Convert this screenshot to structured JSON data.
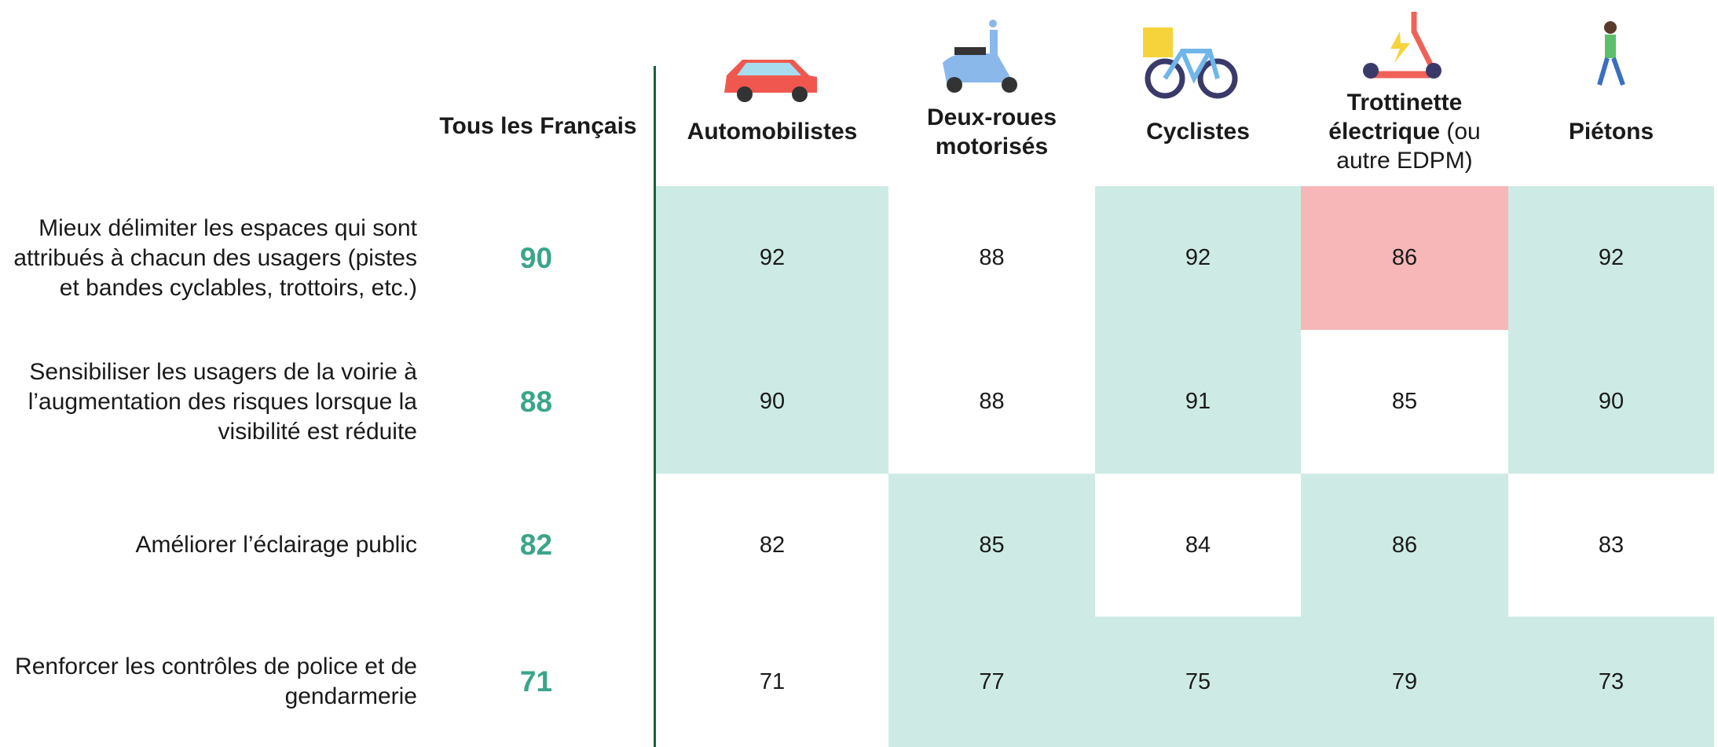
{
  "header": {
    "overall": "Tous les Français",
    "columns": [
      {
        "name": "Automobilistes"
      },
      {
        "name": "Deux-roues motorisés"
      },
      {
        "name": "Cyclistes"
      },
      {
        "name": "Trottinette électrique",
        "note": "(ou autre EDPM)"
      },
      {
        "name": "Piétons"
      }
    ]
  },
  "table": {
    "highlight_colors": {
      "green": "#cdebe4",
      "red": "#f7b6b8",
      "white": "#ffffff"
    },
    "rows": [
      {
        "label": "Mieux délimiter les espaces qui sont attribués à chacun des usagers (pistes et bandes cyclables, trottoirs, etc.)",
        "overall": 90,
        "values": [
          92,
          88,
          92,
          86,
          92
        ],
        "fills": [
          "green",
          "white",
          "green",
          "red",
          "green"
        ]
      },
      {
        "label": "Sensibiliser les usagers de la voirie à l’augmentation des risques lorsque la visibilité est réduite",
        "overall": 88,
        "values": [
          90,
          88,
          91,
          85,
          90
        ],
        "fills": [
          "green",
          "white",
          "green",
          "white",
          "green"
        ]
      },
      {
        "label": "Améliorer l’éclairage public",
        "overall": 82,
        "values": [
          82,
          85,
          84,
          86,
          83
        ],
        "fills": [
          "white",
          "green",
          "white",
          "green",
          "white"
        ]
      },
      {
        "label": "Renforcer les contrôles de police et de gendarmerie",
        "overall": 71,
        "values": [
          71,
          77,
          75,
          79,
          73
        ],
        "fills": [
          "white",
          "green",
          "green",
          "green",
          "green"
        ]
      }
    ]
  }
}
